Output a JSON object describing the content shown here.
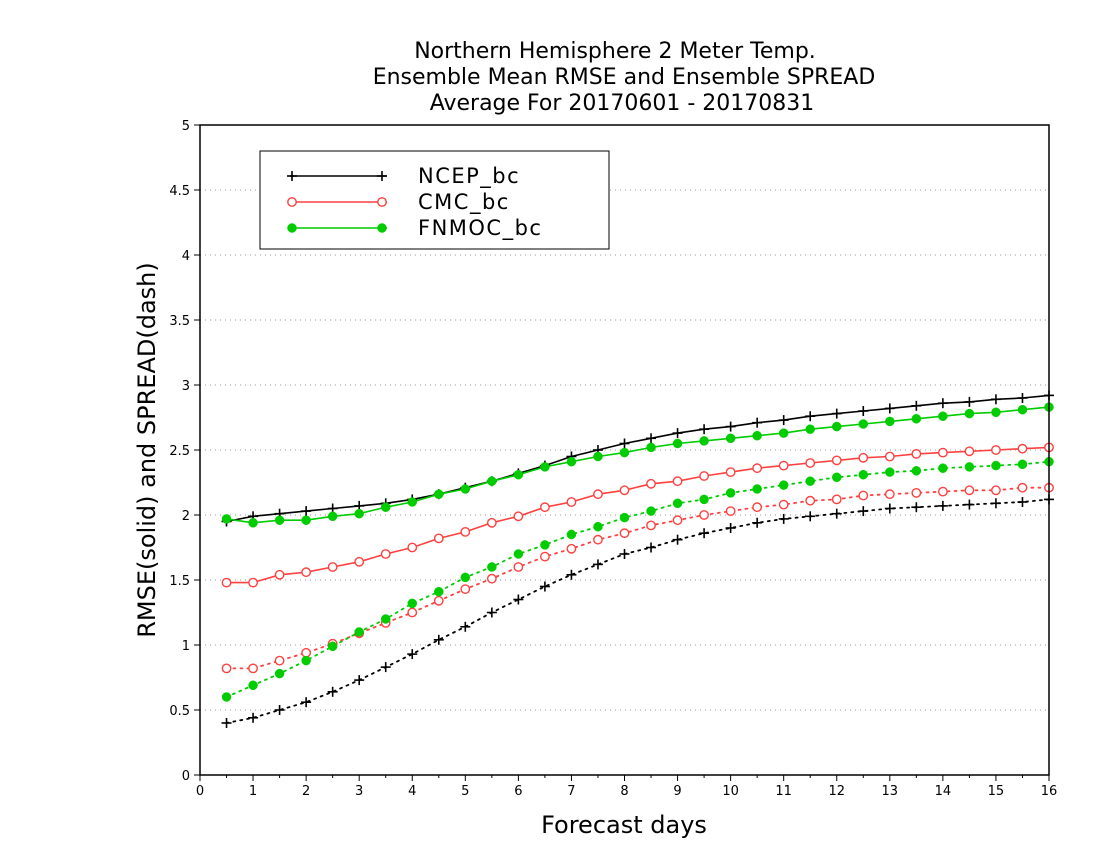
{
  "chart_data": {
    "type": "line",
    "title_lines": [
      "Northern Hemisphere 2 Meter Temp.",
      "Ensemble Mean RMSE and Ensemble SPREAD",
      "Average For 20170601 - 20170831"
    ],
    "xlabel": "Forecast days",
    "ylabel": "RMSE(solid) and SPREAD(dash)",
    "xlim": [
      0,
      16
    ],
    "ylim": [
      0,
      5
    ],
    "xticks": [
      "0",
      "1",
      "2",
      "3",
      "4",
      "5",
      "6",
      "7",
      "8",
      "9",
      "10",
      "11",
      "12",
      "13",
      "14",
      "15",
      "16"
    ],
    "yticks": [
      "0",
      "0.5",
      "1",
      "1.5",
      "2",
      "2.5",
      "3",
      "3.5",
      "4",
      "4.5",
      "5"
    ],
    "grid": "horizontal dotted",
    "legend_position": "top-left",
    "x": [
      0.5,
      1,
      1.5,
      2,
      2.5,
      3,
      3.5,
      4,
      4.5,
      5,
      5.5,
      6,
      6.5,
      7,
      7.5,
      8,
      8.5,
      9,
      9.5,
      10,
      10.5,
      11,
      11.5,
      12,
      12.5,
      13,
      13.5,
      14,
      14.5,
      15,
      15.5,
      16
    ],
    "series": [
      {
        "name": "NCEP_bc",
        "color": "#000000",
        "marker": "plus",
        "rmse": [
          1.95,
          1.99,
          2.01,
          2.03,
          2.05,
          2.07,
          2.09,
          2.12,
          2.16,
          2.21,
          2.26,
          2.32,
          2.38,
          2.45,
          2.5,
          2.55,
          2.59,
          2.63,
          2.66,
          2.68,
          2.71,
          2.73,
          2.76,
          2.78,
          2.8,
          2.82,
          2.84,
          2.86,
          2.87,
          2.89,
          2.9,
          2.92
        ],
        "spread": [
          0.4,
          0.44,
          0.5,
          0.56,
          0.64,
          0.73,
          0.83,
          0.93,
          1.04,
          1.14,
          1.25,
          1.35,
          1.45,
          1.54,
          1.62,
          1.7,
          1.75,
          1.81,
          1.86,
          1.9,
          1.94,
          1.97,
          1.99,
          2.01,
          2.03,
          2.05,
          2.06,
          2.07,
          2.08,
          2.09,
          2.1,
          2.12
        ]
      },
      {
        "name": "CMC_bc",
        "color": "#ff4040",
        "marker": "open-circle",
        "rmse": [
          1.48,
          1.48,
          1.54,
          1.56,
          1.6,
          1.64,
          1.7,
          1.75,
          1.82,
          1.87,
          1.94,
          1.99,
          2.06,
          2.1,
          2.16,
          2.19,
          2.24,
          2.26,
          2.3,
          2.33,
          2.36,
          2.38,
          2.4,
          2.42,
          2.44,
          2.45,
          2.47,
          2.48,
          2.49,
          2.5,
          2.51,
          2.52
        ],
        "spread": [
          0.82,
          0.82,
          0.88,
          0.94,
          1.01,
          1.09,
          1.17,
          1.25,
          1.34,
          1.43,
          1.51,
          1.6,
          1.68,
          1.74,
          1.81,
          1.86,
          1.92,
          1.96,
          2.0,
          2.03,
          2.06,
          2.08,
          2.11,
          2.12,
          2.15,
          2.16,
          2.17,
          2.18,
          2.19,
          2.19,
          2.21,
          2.21
        ]
      },
      {
        "name": "FNMOC_bc",
        "color": "#00cc00",
        "marker": "filled-circle",
        "rmse": [
          1.97,
          1.94,
          1.96,
          1.96,
          1.99,
          2.01,
          2.06,
          2.1,
          2.16,
          2.2,
          2.26,
          2.31,
          2.37,
          2.41,
          2.45,
          2.48,
          2.52,
          2.55,
          2.57,
          2.59,
          2.61,
          2.63,
          2.66,
          2.68,
          2.7,
          2.72,
          2.74,
          2.76,
          2.78,
          2.79,
          2.81,
          2.83
        ],
        "spread": [
          0.6,
          0.69,
          0.78,
          0.88,
          0.99,
          1.1,
          1.2,
          1.32,
          1.41,
          1.52,
          1.6,
          1.7,
          1.77,
          1.85,
          1.91,
          1.98,
          2.03,
          2.09,
          2.12,
          2.17,
          2.2,
          2.23,
          2.26,
          2.29,
          2.31,
          2.33,
          2.34,
          2.36,
          2.37,
          2.38,
          2.39,
          2.41
        ]
      }
    ]
  }
}
